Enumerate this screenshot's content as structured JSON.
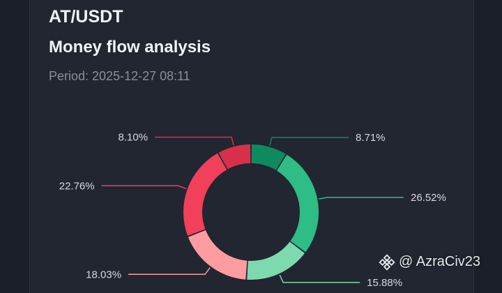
{
  "header": {
    "pair": "AT/USDT",
    "title": "Money flow analysis",
    "period": "Period: 2025-12-27 08:11"
  },
  "watermark": {
    "text": "@ AzraCiv23",
    "icon": "binance-logo-icon"
  },
  "chart_data": {
    "type": "pie",
    "variant": "donut",
    "slices": [
      {
        "label": "8.71%",
        "value": 8.71,
        "color": "#0f8a5f"
      },
      {
        "label": "26.52%",
        "value": 26.52,
        "color": "#2ebd85"
      },
      {
        "label": "15.88%",
        "value": 15.88,
        "color": "#7ddaaf"
      },
      {
        "label": "18.03%",
        "value": 18.03,
        "color": "#ff9ca1"
      },
      {
        "label": "22.76%",
        "value": 22.76,
        "color": "#f23f5a"
      },
      {
        "label": "8.10%",
        "value": 8.1,
        "color": "#d9304a"
      }
    ]
  }
}
